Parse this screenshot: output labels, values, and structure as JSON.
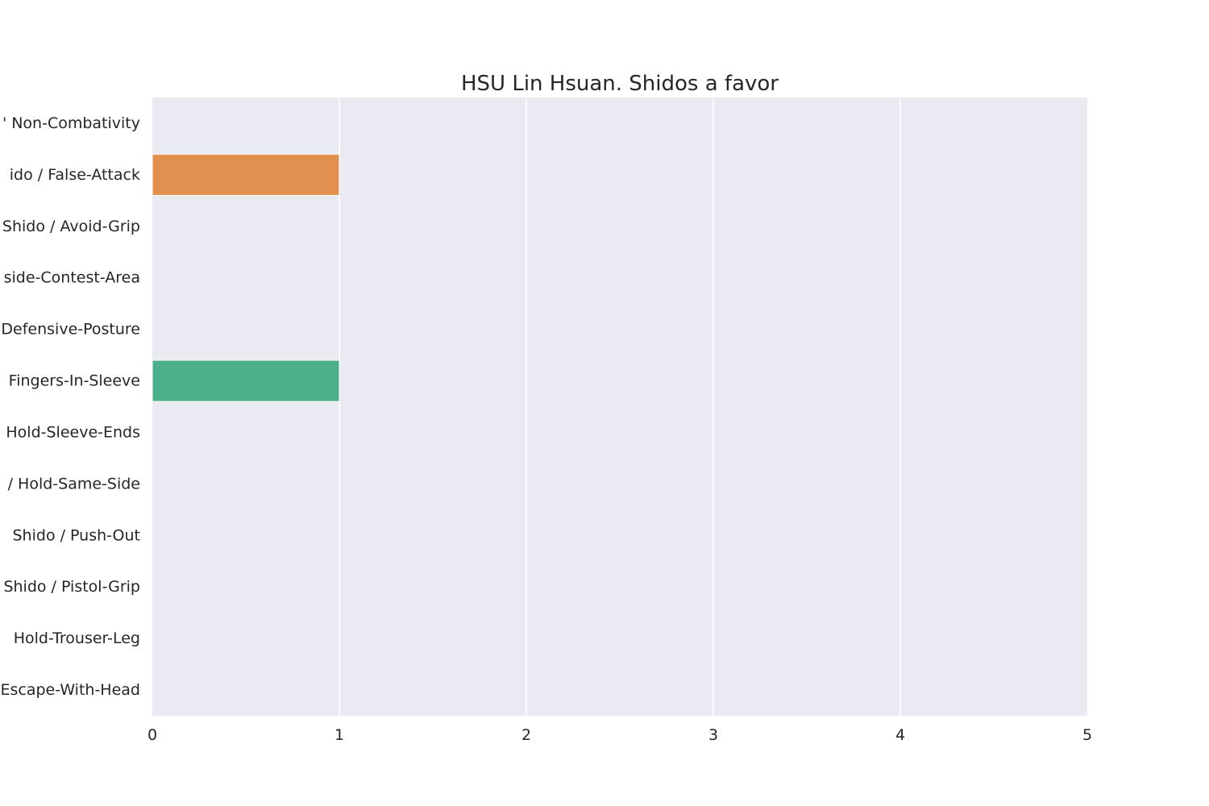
{
  "chart_data": {
    "type": "bar",
    "orientation": "horizontal",
    "title": "HSU Lin Hsuan. Shidos a favor",
    "xlabel": "",
    "ylabel": "",
    "xlim": [
      0,
      5
    ],
    "xticks": [
      "0",
      "1",
      "2",
      "3",
      "4",
      "5"
    ],
    "grid": true,
    "legend": "none",
    "categories": [
      "' Non-Combativity",
      "ido / False-Attack",
      "Shido / Avoid-Grip",
      "side-Contest-Area",
      "Defensive-Posture",
      "Fingers-In-Sleeve",
      "Hold-Sleeve-Ends",
      "/ Hold-Same-Side",
      "Shido / Push-Out",
      "Shido / Pistol-Grip",
      "Hold-Trouser-Leg",
      "Escape-With-Head"
    ],
    "values": [
      0,
      1,
      0,
      0,
      0,
      1,
      0,
      0,
      0,
      0,
      0,
      0
    ],
    "colors": [
      "#3274a1",
      "#e1904f",
      "#3a923a",
      "#c03d3e",
      "#9372b2",
      "#4ab08a",
      "#845b53",
      "#d684bd",
      "#7f7f7f",
      "#a9aa35",
      "#2ea6b6",
      "#3274a1"
    ],
    "plot_background": "#eaeaf2",
    "grid_color": "#ffffff"
  }
}
